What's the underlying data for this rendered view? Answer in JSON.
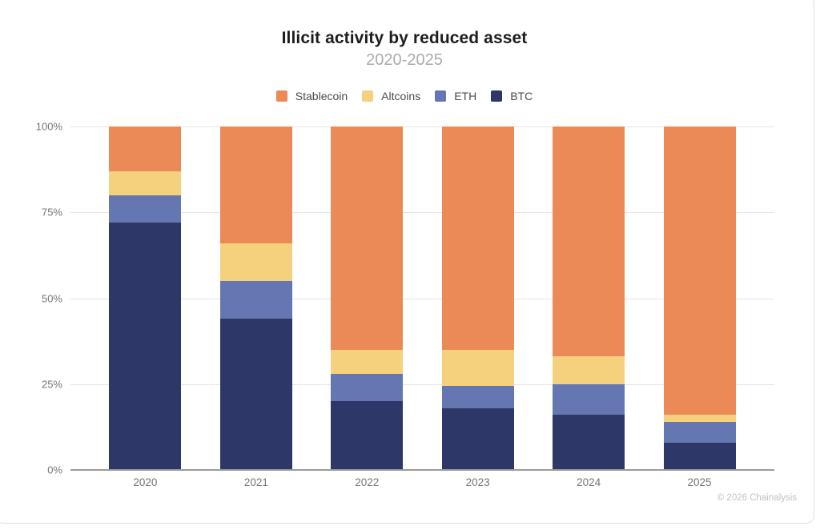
{
  "header": {
    "title": "Illicit activity by reduced asset",
    "subtitle": "2020-2025"
  },
  "chart_data": {
    "type": "bar",
    "stacked": true,
    "title": "Illicit activity by reduced asset",
    "subtitle": "2020-2025",
    "categories": [
      "2020",
      "2021",
      "2022",
      "2023",
      "2024",
      "2025"
    ],
    "series": [
      {
        "name": "BTC",
        "color": "#2d3869",
        "values": [
          72,
          44,
          20,
          18,
          16,
          8
        ]
      },
      {
        "name": "ETH",
        "color": "#6577b3",
        "values": [
          8,
          11,
          8,
          6.5,
          9,
          6
        ]
      },
      {
        "name": "Altcoins",
        "color": "#f5d17e",
        "values": [
          7,
          11,
          7,
          10.5,
          8,
          2
        ]
      },
      {
        "name": "Stablecoin",
        "color": "#ec8a57",
        "values": [
          13,
          34,
          65,
          65,
          67,
          84
        ]
      }
    ],
    "legend_order": [
      "Stablecoin",
      "Altcoins",
      "ETH",
      "BTC"
    ],
    "legend_position": "top-center",
    "ylim": [
      0,
      100
    ],
    "yticks": [
      {
        "label": "0%",
        "value": 0
      },
      {
        "label": "25%",
        "value": 25
      },
      {
        "label": "50%",
        "value": 50
      },
      {
        "label": "75%",
        "value": 75
      },
      {
        "label": "100%",
        "value": 100
      }
    ],
    "grid": true
  },
  "footer": {
    "copyright": "© 2026 Chainalysis"
  }
}
